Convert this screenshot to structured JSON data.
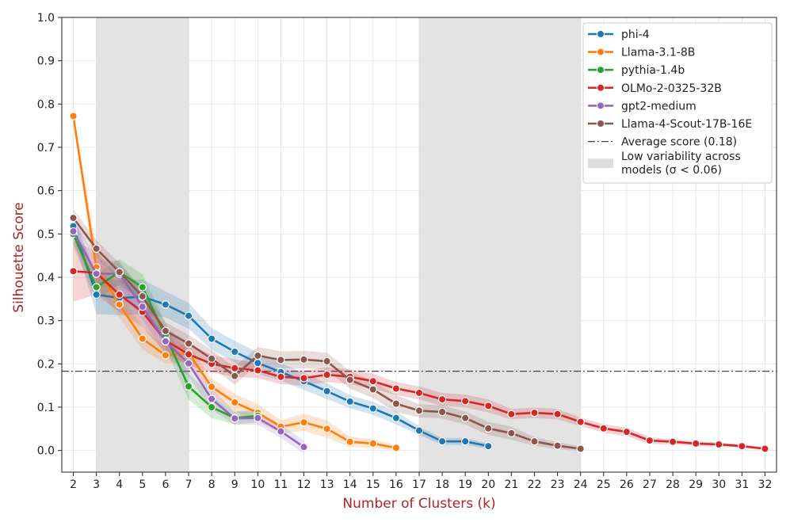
{
  "chart_data": {
    "type": "line",
    "xlabel": "Number of Clusters (k)",
    "ylabel": "Silhouette Score",
    "xlim": [
      1.5,
      32.5
    ],
    "ylim": [
      -0.05,
      1.0
    ],
    "grid": true,
    "legend_position": "top-right",
    "x_ticks": [
      2,
      3,
      4,
      5,
      6,
      7,
      8,
      9,
      10,
      11,
      12,
      13,
      14,
      15,
      16,
      17,
      18,
      19,
      20,
      21,
      22,
      23,
      24,
      25,
      26,
      27,
      28,
      29,
      30,
      31,
      32
    ],
    "y_ticks": [
      0.0,
      0.1,
      0.2,
      0.3,
      0.4,
      0.5,
      0.6,
      0.7,
      0.8,
      0.9,
      1.0
    ],
    "y_tick_labels": [
      "0.0",
      "0.1",
      "0.2",
      "0.3",
      "0.4",
      "0.5",
      "0.6",
      "0.7",
      "0.8",
      "0.9",
      "1.0"
    ],
    "average_line": {
      "value": 0.183,
      "label": "Average score (0.18)"
    },
    "shaded_regions": [
      {
        "x_start": 3,
        "x_end": 7
      },
      {
        "x_start": 17,
        "x_end": 24
      }
    ],
    "shaded_label": "Low variability across models (σ < 0.06)",
    "series": [
      {
        "name": "phi-4",
        "color": "#1f77b4",
        "x": [
          2,
          3,
          4,
          5,
          6,
          7,
          8,
          9,
          10,
          11,
          12,
          13,
          14,
          15,
          16,
          17,
          18,
          19,
          20
        ],
        "values": [
          0.518,
          0.36,
          0.352,
          0.355,
          0.337,
          0.311,
          0.258,
          0.228,
          0.202,
          0.181,
          0.16,
          0.137,
          0.113,
          0.097,
          0.075,
          0.046,
          0.021,
          0.021,
          0.01
        ],
        "ci": [
          0.025,
          0.045,
          0.04,
          0.04,
          0.03,
          0.03,
          0.025,
          0.025,
          0.025,
          0.02,
          0.02,
          0.018,
          0.015,
          0.015,
          0.015,
          0.01,
          0.008,
          0.008,
          0.006
        ]
      },
      {
        "name": "Llama-3.1-8B",
        "color": "#ff7f0e",
        "x": [
          2,
          3,
          4,
          5,
          6,
          7,
          8,
          9,
          10,
          11,
          12,
          13,
          14,
          15,
          16
        ],
        "values": [
          0.772,
          0.423,
          0.337,
          0.258,
          0.22,
          0.225,
          0.147,
          0.111,
          0.087,
          0.055,
          0.065,
          0.05,
          0.02,
          0.016,
          0.006
        ],
        "ci": [
          0.01,
          0.04,
          0.03,
          0.025,
          0.02,
          0.02,
          0.02,
          0.02,
          0.02,
          0.015,
          0.02,
          0.02,
          0.012,
          0.01,
          0.006
        ]
      },
      {
        "name": "pythia-1.4b",
        "color": "#2ca02c",
        "x": [
          2,
          3,
          4,
          5,
          6,
          7,
          8,
          9,
          10
        ],
        "values": [
          0.5,
          0.377,
          0.412,
          0.377,
          0.265,
          0.148,
          0.1,
          0.075,
          0.08
        ],
        "ci": [
          0.03,
          0.03,
          0.03,
          0.03,
          0.03,
          0.03,
          0.025,
          0.015,
          0.015
        ]
      },
      {
        "name": "OLMo-2-0325-32B",
        "color": "#d62728",
        "x": [
          2,
          3,
          4,
          5,
          6,
          7,
          8,
          9,
          10,
          11,
          12,
          13,
          14,
          15,
          16,
          17,
          18,
          19,
          20,
          21,
          22,
          23,
          24,
          25,
          26,
          27,
          28,
          29,
          30,
          31,
          32
        ],
        "values": [
          0.414,
          0.41,
          0.36,
          0.32,
          0.254,
          0.222,
          0.2,
          0.19,
          0.185,
          0.17,
          0.167,
          0.175,
          0.17,
          0.16,
          0.143,
          0.133,
          0.118,
          0.114,
          0.103,
          0.084,
          0.087,
          0.084,
          0.066,
          0.051,
          0.043,
          0.023,
          0.02,
          0.016,
          0.014,
          0.01,
          0.004
        ],
        "ci": [
          0.07,
          0.05,
          0.04,
          0.035,
          0.03,
          0.025,
          0.02,
          0.02,
          0.018,
          0.017,
          0.017,
          0.017,
          0.017,
          0.017,
          0.015,
          0.015,
          0.015,
          0.015,
          0.015,
          0.012,
          0.012,
          0.012,
          0.01,
          0.01,
          0.01,
          0.008,
          0.006,
          0.005,
          0.005,
          0.004,
          0.003
        ]
      },
      {
        "name": "gpt2-medium",
        "color": "#9467bd",
        "x": [
          2,
          3,
          4,
          5,
          6,
          7,
          8,
          9,
          10,
          11,
          12
        ],
        "values": [
          0.506,
          0.408,
          0.408,
          0.332,
          0.252,
          0.201,
          0.119,
          0.074,
          0.075,
          0.044,
          0.008
        ],
        "ci": [
          0.03,
          0.03,
          0.03,
          0.03,
          0.03,
          0.03,
          0.025,
          0.015,
          0.015,
          0.015,
          0.015
        ]
      },
      {
        "name": "Llama-4-Scout-17B-16E",
        "color": "#8c564b",
        "x": [
          2,
          3,
          4,
          5,
          6,
          7,
          8,
          9,
          10,
          11,
          12,
          13,
          14,
          15,
          16,
          17,
          18,
          19,
          20,
          21,
          22,
          23,
          24
        ],
        "values": [
          0.537,
          0.466,
          0.412,
          0.356,
          0.276,
          0.247,
          0.212,
          0.172,
          0.219,
          0.209,
          0.21,
          0.206,
          0.163,
          0.141,
          0.108,
          0.092,
          0.089,
          0.075,
          0.051,
          0.04,
          0.021,
          0.011,
          0.004
        ],
        "ci": [
          0.02,
          0.02,
          0.02,
          0.02,
          0.02,
          0.02,
          0.02,
          0.02,
          0.02,
          0.02,
          0.02,
          0.02,
          0.02,
          0.02,
          0.02,
          0.015,
          0.015,
          0.015,
          0.015,
          0.015,
          0.01,
          0.008,
          0.006
        ]
      }
    ]
  }
}
